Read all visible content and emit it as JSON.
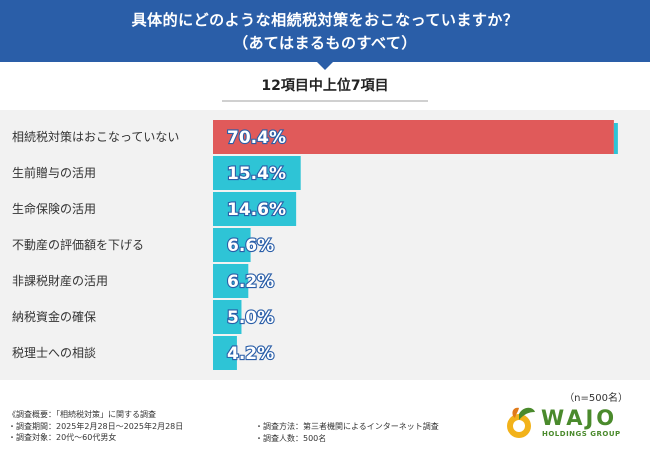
{
  "header": {
    "title_line1": "具体的にどのような相続税対策をおこなっていますか？",
    "title_line2": "（あてはまるものすべて）"
  },
  "subtitle": "12項目中上位7項目",
  "chart_data": {
    "type": "bar",
    "orientation": "horizontal",
    "title": "具体的にどのような相続税対策をおこなっていますか？（あてはまるものすべて）",
    "subtitle": "12項目中上位7項目",
    "categories": [
      "相続税対策はおこなっていない",
      "生前贈与の活用",
      "生命保険の活用",
      "不動産の評価額を下げる",
      "非課税財産の活用",
      "納税資金の確保",
      "税理士への相談"
    ],
    "values": [
      70.4,
      15.4,
      14.6,
      6.6,
      6.2,
      5.0,
      4.2
    ],
    "value_labels": [
      "70.4%",
      "15.4%",
      "14.6%",
      "6.6%",
      "6.2%",
      "5.0%",
      "4.2%"
    ],
    "unit": "%",
    "xlim": [
      0,
      72
    ],
    "colors": {
      "highlight": "#e05a5a",
      "default": "#2ec4d6",
      "label_outline": "#2a5ea8"
    }
  },
  "n_label": "（n=500名）",
  "footer": {
    "survey_overview": "《調査概要：「相続税対策」に関する調査",
    "period": "・調査期間：2025年2月28日～2025年2月28日",
    "target": "・調査対象：20代～60代男女",
    "method": "・調査方法：第三者機関によるインターネット調査",
    "count": "・調査人数：500名"
  },
  "logo": {
    "word": "WAJO",
    "group": "HOLDINGS GROUP"
  }
}
